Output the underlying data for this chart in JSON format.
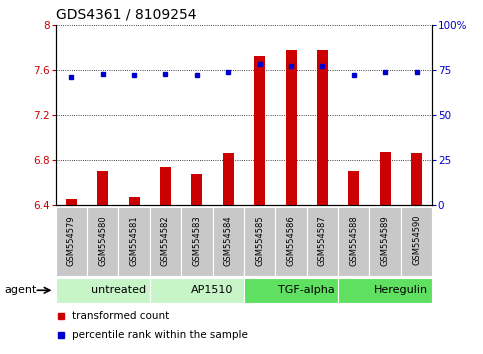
{
  "title": "GDS4361 / 8109254",
  "samples": [
    "GSM554579",
    "GSM554580",
    "GSM554581",
    "GSM554582",
    "GSM554583",
    "GSM554584",
    "GSM554585",
    "GSM554586",
    "GSM554587",
    "GSM554588",
    "GSM554589",
    "GSM554590"
  ],
  "red_values": [
    6.46,
    6.7,
    6.47,
    6.74,
    6.68,
    6.86,
    7.72,
    7.78,
    7.78,
    6.7,
    6.87,
    6.86
  ],
  "blue_values": [
    71,
    73,
    72,
    73,
    72,
    74,
    78,
    77,
    77,
    72,
    74,
    74
  ],
  "groups": [
    {
      "label": "untreated",
      "start": 0,
      "end": 3,
      "color": "#C8F5C8"
    },
    {
      "label": "AP1510",
      "start": 3,
      "end": 6,
      "color": "#C8F5C8"
    },
    {
      "label": "TGF-alpha",
      "start": 6,
      "end": 9,
      "color": "#60E060"
    },
    {
      "label": "Heregulin",
      "start": 9,
      "end": 12,
      "color": "#60E060"
    }
  ],
  "ylim_left": [
    6.4,
    8.0
  ],
  "ylim_right": [
    0,
    100
  ],
  "yticks_left": [
    6.4,
    6.8,
    7.2,
    7.6,
    8.0
  ],
  "yticks_right": [
    0,
    25,
    50,
    75,
    100
  ],
  "ytick_labels_left": [
    "6.4",
    "6.8",
    "7.2",
    "7.6",
    "8"
  ],
  "ytick_labels_right": [
    "0",
    "25",
    "50",
    "75",
    "100%"
  ],
  "red_color": "#CC0000",
  "blue_color": "#0000CC",
  "bar_width": 0.35,
  "agent_label": "agent",
  "legend_red": "transformed count",
  "legend_blue": "percentile rank within the sample",
  "title_fontsize": 10,
  "tick_fontsize": 7.5,
  "sample_fontsize": 6,
  "group_fontsize": 8
}
